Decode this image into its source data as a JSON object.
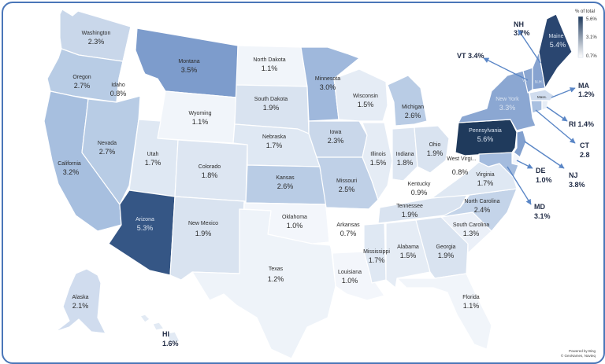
{
  "legend": {
    "title": "% of total",
    "max_label": "5.6%",
    "mid_label": "3.1%",
    "min_label": "0.7%",
    "gradient_from": "#ffffff",
    "gradient_to": "#1f3a5c"
  },
  "attribution": {
    "line1": "Powered by Bing",
    "line2": "© GeoNames, Navteq"
  },
  "colors": {
    "frame": "#4a76b8",
    "border": "#ffffff",
    "leader": "#5a86c6"
  },
  "states": [
    {
      "id": "WA",
      "name": "Washington",
      "value": "2.3%",
      "fill": "#c9d7ea"
    },
    {
      "id": "OR",
      "name": "Oregon",
      "value": "2.7%",
      "fill": "#b8cce5"
    },
    {
      "id": "CA",
      "name": "California",
      "value": "3.2%",
      "fill": "#a7bfdf"
    },
    {
      "id": "ID",
      "name": "Idaho",
      "value": "0.8%",
      "fill": "#ffffff"
    },
    {
      "id": "NV",
      "name": "Nevada",
      "value": "2.7%",
      "fill": "#b8cce5"
    },
    {
      "id": "MT",
      "name": "Montana",
      "value": "3.5%",
      "fill": "#7d9ccc"
    },
    {
      "id": "WY",
      "name": "Wyoming",
      "value": "1.1%",
      "fill": "#f1f5fa"
    },
    {
      "id": "UT",
      "name": "Utah",
      "value": "1.7%",
      "fill": "#dfe8f3"
    },
    {
      "id": "AZ",
      "name": "Arizona",
      "value": "5.3%",
      "fill": "#355685"
    },
    {
      "id": "CO",
      "name": "Colorado",
      "value": "1.8%",
      "fill": "#dde6f2"
    },
    {
      "id": "NM",
      "name": "New Mexico",
      "value": "1.9%",
      "fill": "#d9e3f0"
    },
    {
      "id": "ND",
      "name": "North Dakota",
      "value": "1.1%",
      "fill": "#f1f5fa"
    },
    {
      "id": "SD",
      "name": "South Dakota",
      "value": "1.9%",
      "fill": "#d9e3f0"
    },
    {
      "id": "NE",
      "name": "Nebraska",
      "value": "1.7%",
      "fill": "#dfe8f3"
    },
    {
      "id": "KS",
      "name": "Kansas",
      "value": "2.6%",
      "fill": "#b9cce5"
    },
    {
      "id": "OK",
      "name": "Oklahoma",
      "value": "1.0%",
      "fill": "#f3f6fb"
    },
    {
      "id": "TX",
      "name": "Texas",
      "value": "1.2%",
      "fill": "#eef3f9"
    },
    {
      "id": "MN",
      "name": "Minnesota",
      "value": "3.0%",
      "fill": "#9fb8dc"
    },
    {
      "id": "IA",
      "name": "Iowa",
      "value": "2.3%",
      "fill": "#c9d7ea"
    },
    {
      "id": "MO",
      "name": "Missouri",
      "value": "2.5%",
      "fill": "#bfd0e7"
    },
    {
      "id": "AR",
      "name": "Arkansas",
      "value": "0.7%",
      "fill": "#ffffff"
    },
    {
      "id": "LA",
      "name": "Louisiana",
      "value": "1.0%",
      "fill": "#f3f6fb"
    },
    {
      "id": "WI",
      "name": "Wisconsin",
      "value": "1.5%",
      "fill": "#e5ecf5"
    },
    {
      "id": "IL",
      "name": "Illinois",
      "value": "1.5%",
      "fill": "#e5ecf5"
    },
    {
      "id": "MI",
      "name": "Michigan",
      "value": "2.6%",
      "fill": "#b9cce5"
    },
    {
      "id": "IN",
      "name": "Indiana",
      "value": "1.8%",
      "fill": "#dde6f2"
    },
    {
      "id": "OH",
      "name": "Ohio",
      "value": "1.9%",
      "fill": "#d9e3f0"
    },
    {
      "id": "KY",
      "name": "Kentucky",
      "value": "0.9%",
      "fill": "#ffffff"
    },
    {
      "id": "TN",
      "name": "Tennessee",
      "value": "1.9%",
      "fill": "#d9e3f0"
    },
    {
      "id": "MS",
      "name": "Mississippi",
      "value": "1.7%",
      "fill": "#dfe8f3"
    },
    {
      "id": "AL",
      "name": "Alabama",
      "value": "1.5%",
      "fill": "#e5ecf5"
    },
    {
      "id": "GA",
      "name": "Georgia",
      "value": "1.9%",
      "fill": "#d9e3f0"
    },
    {
      "id": "FL",
      "name": "Florida",
      "value": "1.1%",
      "fill": "#f1f5fa"
    },
    {
      "id": "SC",
      "name": "South Carolina",
      "value": "1.3%",
      "fill": "#ebf0f8"
    },
    {
      "id": "NC",
      "name": "North Carolina",
      "value": "2.4%",
      "fill": "#c4d4e9"
    },
    {
      "id": "VA",
      "name": "Virginia",
      "value": "1.7%",
      "fill": "#dfe8f3"
    },
    {
      "id": "WV",
      "name": "West Virgi...",
      "value": "0.8%",
      "fill": "#ffffff"
    },
    {
      "id": "PA",
      "name": "Pennsylvania",
      "value": "5.6%",
      "fill": "#1f3a5c"
    },
    {
      "id": "NY",
      "name": "New York",
      "value": "3.3%",
      "fill": "#8ba7d2"
    },
    {
      "id": "ME",
      "name": "Maine",
      "value": "5.4%",
      "fill": "#2a4670"
    },
    {
      "id": "AK",
      "name": "Alaska",
      "value": "2.1%",
      "fill": "#d0dcee"
    },
    {
      "id": "HI",
      "name": "",
      "value": "1.6%",
      "fill": "#e2eaf4"
    }
  ],
  "small_states": [
    {
      "id": "VT",
      "label": "Vt.",
      "fill": "#8aa6d1"
    },
    {
      "id": "NH",
      "label": "N.H.",
      "fill": "#87a3d0"
    },
    {
      "id": "MA",
      "label": "Mass.",
      "fill": "#d0dcee"
    },
    {
      "id": "CT",
      "label": "",
      "fill": "#a9c0e0"
    },
    {
      "id": "RI",
      "label": "",
      "fill": "#e6edf6"
    },
    {
      "id": "NJ",
      "label": "",
      "fill": "#82a0ce"
    },
    {
      "id": "DE",
      "label": "",
      "fill": "#f3f6fb"
    },
    {
      "id": "MD",
      "label": "",
      "fill": "#a4bcde"
    }
  ],
  "callouts": [
    {
      "id": "NH",
      "text1": "NH",
      "text2": "3.7%"
    },
    {
      "id": "VT",
      "text1": "VT 3.4%",
      "text2": ""
    },
    {
      "id": "MA",
      "text1": "MA",
      "text2": "1.2%"
    },
    {
      "id": "RI",
      "text1": "RI 1.4%",
      "text2": ""
    },
    {
      "id": "CT",
      "text1": "CT",
      "text2": "2.8"
    },
    {
      "id": "NJ",
      "text1": "NJ",
      "text2": "3.8%"
    },
    {
      "id": "DE",
      "text1": "DE",
      "text2": "1.0%"
    },
    {
      "id": "MD",
      "text1": "MD",
      "text2": "3.1%"
    },
    {
      "id": "HI",
      "text1": "HI",
      "text2": "1.6%"
    }
  ]
}
